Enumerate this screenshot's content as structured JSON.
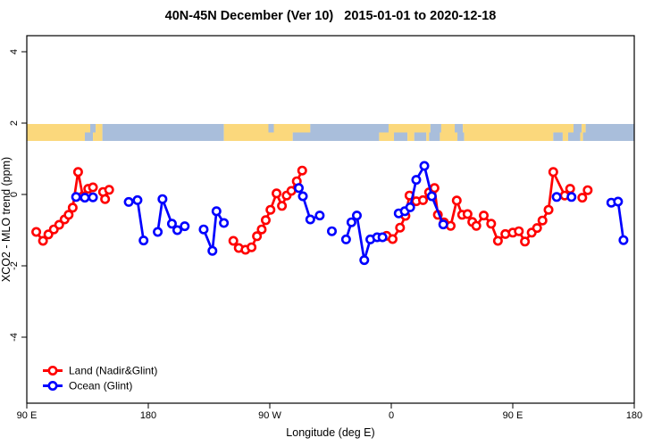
{
  "title_part1": "40N-45N December (Ver 10)",
  "title_part2": "2015-01-01 to 2020-12-18",
  "legend": {
    "items": [
      {
        "label": "Land (Nadir&Glint)",
        "color": "#FF0000"
      },
      {
        "label": "Ocean (Glint)",
        "color": "#0000FF"
      }
    ]
  },
  "colors": {
    "land_series": "#FF0000",
    "ocean_series": "#0000FF",
    "map_land": "#FBD87C",
    "map_ocean": "#A9BEDB",
    "frame": "#000000"
  },
  "chart_data": {
    "type": "line",
    "title": "40N-45N December (Ver 10)   2015-01-01 to 2020-12-18",
    "xlabel": "Longitude (deg E)",
    "ylabel": "XCO2 - MLO trend (ppm)",
    "x_axis": {
      "min": 90,
      "max": 540,
      "tick_values": [
        90,
        180,
        270,
        360,
        450,
        540
      ],
      "tick_labels": [
        "90 E",
        "180",
        "90 W",
        "0",
        "90 E",
        "180"
      ]
    },
    "y_axis": {
      "min": -5.85,
      "max": 4.45,
      "tick_values": [
        -4,
        -2,
        0,
        2,
        4
      ],
      "tick_labels": [
        "-4",
        "-2",
        "0",
        "2",
        "4"
      ]
    },
    "map_band": {
      "y_top": 1.975,
      "y_mid": 1.7375,
      "y_bottom": 1.5,
      "rows": [
        {
          "segments": [
            [
              90,
              137,
              "land"
            ],
            [
              137,
              141,
              "ocean"
            ],
            [
              141,
              146,
              "land"
            ],
            [
              146,
              236,
              "ocean"
            ],
            [
              236,
              300,
              "land"
            ],
            [
              269,
              273,
              "ocean"
            ],
            [
              300,
              358,
              "ocean"
            ],
            [
              358,
              389,
              "land"
            ],
            [
              389,
              397,
              "ocean"
            ],
            [
              397,
              407,
              "land"
            ],
            [
              407,
              413,
              "ocean"
            ],
            [
              413,
              495,
              "land"
            ],
            [
              495,
              501,
              "ocean"
            ],
            [
              501,
              504,
              "land"
            ],
            [
              504,
              540,
              "ocean"
            ]
          ]
        },
        {
          "segments": [
            [
              90,
              133,
              "land"
            ],
            [
              133,
              139,
              "ocean"
            ],
            [
              139,
              146,
              "land"
            ],
            [
              146,
              236,
              "ocean"
            ],
            [
              236,
              287,
              "land"
            ],
            [
              287,
              351,
              "ocean"
            ],
            [
              351,
              362,
              "land"
            ],
            [
              362,
              372,
              "ocean"
            ],
            [
              372,
              377,
              "land"
            ],
            [
              377,
              386,
              "ocean"
            ],
            [
              386,
              388,
              "land"
            ],
            [
              388,
              396,
              "ocean"
            ],
            [
              396,
              409,
              "land"
            ],
            [
              409,
              414,
              "ocean"
            ],
            [
              414,
              480,
              "land"
            ],
            [
              480,
              487,
              "ocean"
            ],
            [
              487,
              491,
              "land"
            ],
            [
              491,
              500,
              "ocean"
            ],
            [
              500,
              502,
              "land"
            ],
            [
              502,
              540,
              "ocean"
            ]
          ]
        }
      ]
    },
    "series": [
      {
        "name": "Land (Nadir&Glint)",
        "color": "#FF0000",
        "segments": [
          [
            [
              97,
              -1.05
            ],
            [
              102,
              -1.3
            ],
            [
              106,
              -1.12
            ],
            [
              110,
              -0.98
            ],
            [
              114,
              -0.85
            ],
            [
              118,
              -0.7
            ],
            [
              121,
              -0.57
            ],
            [
              124,
              -0.37
            ],
            [
              128,
              0.63
            ],
            [
              131.5,
              -0.05
            ],
            [
              135.5,
              0.16
            ],
            [
              139,
              0.2
            ]
          ],
          [
            [
              146.5,
              0.07
            ],
            [
              148,
              -0.13
            ],
            [
              151,
              0.13
            ]
          ],
          [
            [
              243,
              -1.3
            ],
            [
              247,
              -1.5
            ],
            [
              252,
              -1.55
            ],
            [
              256.5,
              -1.48
            ],
            [
              260.5,
              -1.17
            ],
            [
              264,
              -0.98
            ],
            [
              267,
              -0.72
            ],
            [
              270.5,
              -0.43
            ],
            [
              275,
              0.03
            ],
            [
              279,
              -0.32
            ],
            [
              282.5,
              -0.03
            ],
            [
              286,
              0.1
            ],
            [
              290,
              0.37
            ],
            [
              294,
              0.67
            ]
          ],
          [
            [
              356.5,
              -1.16
            ],
            [
              361,
              -1.25
            ],
            [
              366.5,
              -0.93
            ],
            [
              370.5,
              -0.6
            ],
            [
              373.5,
              -0.03
            ],
            [
              378.5,
              -0.19
            ],
            [
              383.5,
              -0.16
            ],
            [
              388,
              0.06
            ],
            [
              392,
              0.18
            ],
            [
              394.5,
              -0.57
            ],
            [
              399,
              -0.78
            ],
            [
              404,
              -0.88
            ],
            [
              408.5,
              -0.17
            ],
            [
              412.5,
              -0.57
            ],
            [
              416.5,
              -0.55
            ],
            [
              420,
              -0.77
            ],
            [
              423,
              -0.88
            ],
            [
              428.5,
              -0.59
            ],
            [
              434,
              -0.82
            ],
            [
              439,
              -1.3
            ],
            [
              444.5,
              -1.11
            ],
            [
              450,
              -1.07
            ],
            [
              454.5,
              -1.03
            ],
            [
              459,
              -1.32
            ],
            [
              464,
              -1.07
            ],
            [
              468,
              -0.94
            ],
            [
              472,
              -0.73
            ],
            [
              476.5,
              -0.43
            ],
            [
              480,
              0.63
            ],
            [
              488.5,
              -0.03
            ],
            [
              492.5,
              0.16
            ]
          ],
          [
            [
              501.5,
              -0.09
            ],
            [
              505.5,
              0.12
            ]
          ]
        ]
      },
      {
        "name": "Ocean (Glint)",
        "color": "#0000FF",
        "segments": [
          [
            [
              126.5,
              -0.07
            ],
            [
              133,
              -0.09
            ],
            [
              139,
              -0.08
            ]
          ],
          [
            [
              165.5,
              -0.21
            ],
            [
              172,
              -0.16
            ],
            [
              176.5,
              -1.29
            ]
          ],
          [
            [
              187,
              -1.05
            ],
            [
              190.5,
              -0.13
            ],
            [
              197.5,
              -0.82
            ],
            [
              201.5,
              -1.0
            ],
            [
              207,
              -0.89
            ]
          ],
          [
            [
              221,
              -0.98
            ],
            [
              227.5,
              -1.58
            ],
            [
              230.5,
              -0.47
            ],
            [
              236,
              -0.8
            ]
          ],
          [
            [
              291.5,
              0.18
            ],
            [
              294.5,
              -0.05
            ],
            [
              300,
              -0.7
            ],
            [
              307,
              -0.59
            ]
          ],
          [
            [
              316,
              -1.03
            ]
          ],
          [
            [
              326.5,
              -1.26
            ],
            [
              330.5,
              -0.78
            ],
            [
              334.5,
              -0.59
            ],
            [
              340,
              -1.84
            ],
            [
              344.5,
              -1.26
            ],
            [
              349.5,
              -1.2
            ],
            [
              353.5,
              -1.2
            ]
          ],
          [
            [
              365.5,
              -0.53
            ],
            [
              370,
              -0.47
            ],
            [
              374,
              -0.36
            ],
            [
              378.5,
              0.41
            ],
            [
              384.5,
              0.8
            ],
            [
              390,
              -0.05
            ],
            [
              398.5,
              -0.84
            ]
          ],
          [
            [
              482.5,
              -0.07
            ]
          ],
          [
            [
              493.5,
              -0.07
            ]
          ],
          [
            [
              523,
              -0.23
            ],
            [
              528,
              -0.2
            ],
            [
              532,
              -1.28
            ]
          ]
        ]
      }
    ]
  }
}
